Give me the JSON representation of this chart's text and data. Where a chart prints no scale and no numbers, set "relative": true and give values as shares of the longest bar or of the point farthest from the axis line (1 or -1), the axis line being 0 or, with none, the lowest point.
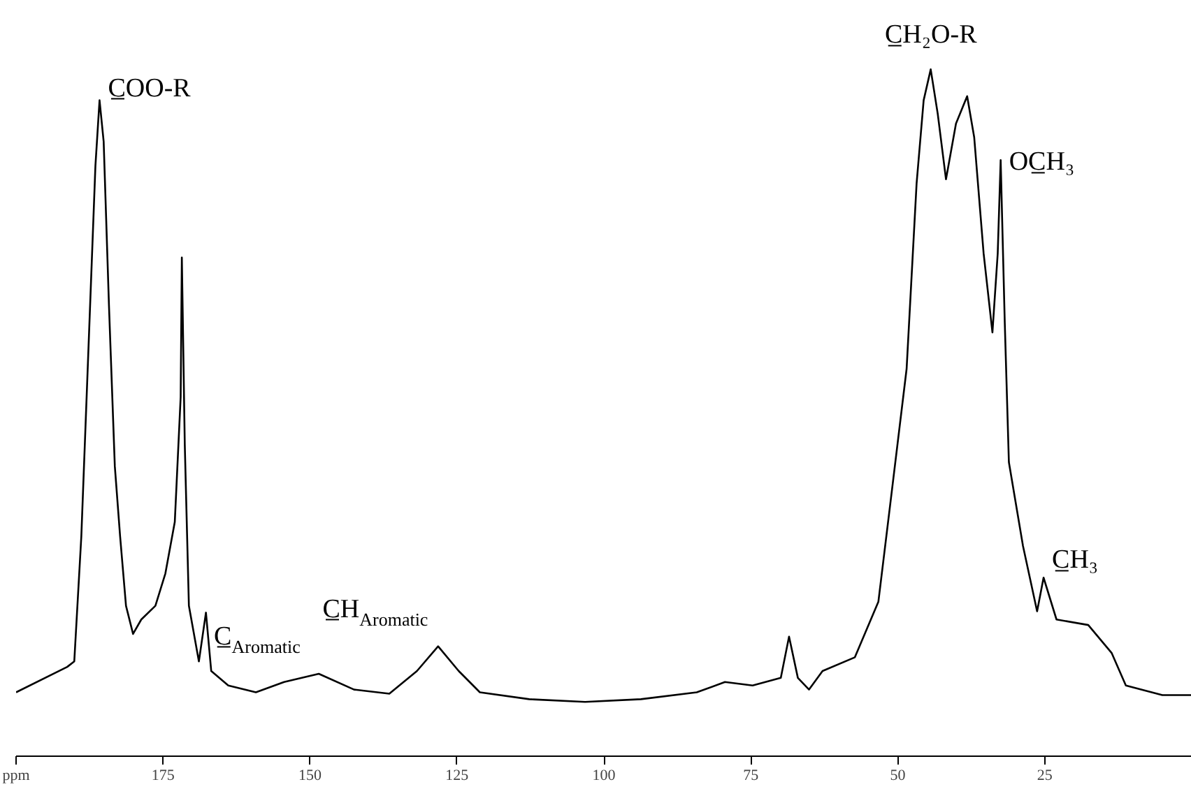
{
  "chart_data": {
    "type": "line",
    "relative": true,
    "marker": "none",
    "line_style": "solid",
    "grid": false,
    "xlim": [
      200,
      0
    ],
    "xticks": [
      {
        "value": 200,
        "label": "ppm"
      },
      175,
      150,
      125,
      100,
      75,
      50,
      25
    ],
    "series": [
      {
        "color": "#000000",
        "x": [
          200,
          191.3,
          190.1,
          188.9,
          187.7,
          186.5,
          185.8,
          185.1,
          184.2,
          183.2,
          182.3,
          181.3,
          180.1,
          178.7,
          176.3,
          174.6,
          173.0,
          172.0,
          171.8,
          171.3,
          170.6,
          168.9,
          167.7,
          166.8,
          163.9,
          159.2,
          154.4,
          148.5,
          142.5,
          136.5,
          131.8,
          128.2,
          124.7,
          121.1,
          112.7,
          103.2,
          93.7,
          84.2,
          79.4,
          74.7,
          69.9,
          68.5,
          67.0,
          65.1,
          62.8,
          57.3,
          53.3,
          50.9,
          48.5,
          46.8,
          45.6,
          44.4,
          43.2,
          41.8,
          40.1,
          38.2,
          37.0,
          35.4,
          33.9,
          33.0,
          32.5,
          31.8,
          31.1,
          28.7,
          26.3,
          25.2,
          23.0,
          17.6,
          13.6,
          11.2,
          5.0,
          0
        ],
        "values": [
          0.093,
          0.13,
          0.138,
          0.32,
          0.59,
          0.86,
          0.955,
          0.895,
          0.657,
          0.422,
          0.32,
          0.219,
          0.178,
          0.199,
          0.219,
          0.266,
          0.341,
          0.523,
          0.726,
          0.454,
          0.219,
          0.138,
          0.209,
          0.124,
          0.103,
          0.093,
          0.108,
          0.12,
          0.097,
          0.091,
          0.124,
          0.16,
          0.124,
          0.093,
          0.083,
          0.079,
          0.083,
          0.093,
          0.108,
          0.103,
          0.114,
          0.174,
          0.114,
          0.097,
          0.124,
          0.144,
          0.225,
          0.394,
          0.564,
          0.834,
          0.955,
          1,
          0.935,
          0.84,
          0.921,
          0.961,
          0.901,
          0.732,
          0.617,
          0.732,
          0.868,
          0.631,
          0.428,
          0.306,
          0.211,
          0.26,
          0.199,
          0.191,
          0.15,
          0.103,
          0.089,
          0.089
        ]
      }
    ],
    "annotations": [
      {
        "text": "C̲OO-R",
        "x": 185.8,
        "y": 0.955
      },
      {
        "text": "C̲$_{Aromatic}$",
        "x": 148.5,
        "y": 0.12
      },
      {
        "text": "C̲H$_{Aromatic}$",
        "x": 128.2,
        "y": 0.16
      },
      {
        "text": "C̲H₂O-R",
        "x": 44.4,
        "y": 1
      },
      {
        "text": "OC̲H₃",
        "x": 32.5,
        "y": 0.868
      },
      {
        "text": "C̲H₃",
        "x": 25.2,
        "y": 0.26
      }
    ]
  }
}
